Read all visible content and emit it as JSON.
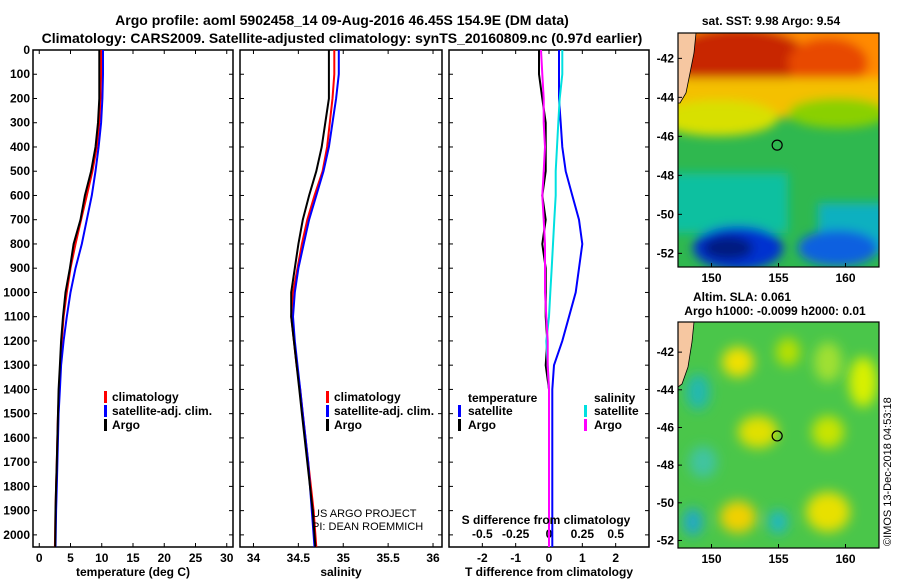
{
  "header": {
    "title_line1": "Argo profile: aoml 5902458_14 09-Aug-2016 46.45S 154.9E (DM data)",
    "title_line2": "Climatology: CARS2009. Satellite-adjusted climatology: synTS_20160809.nc (0.97d earlier)"
  },
  "map_sst": {
    "title": "sat. SST: 9.98 Argo: 9.54"
  },
  "map_sla": {
    "title_line1": "Altim. SLA: 0.061",
    "title_line2": "Argo h1000: -0.0099 h2000: 0.01"
  },
  "map_axes": {
    "lat_ticks": [
      "-42",
      "-44",
      "-46",
      "-48",
      "-50",
      "-52"
    ],
    "lon_ticks": [
      "150",
      "155",
      "160"
    ],
    "lat_values": [
      -42,
      -44,
      -46,
      -48,
      -50,
      -52
    ],
    "lon_values": [
      150,
      155,
      160
    ],
    "lon_range": [
      147.5,
      162.5
    ],
    "lat_range": [
      -40.7,
      -52.7
    ],
    "float_position": {
      "lon": 154.9,
      "lat": -46.45
    }
  },
  "colors": {
    "climatology": "#ff0000",
    "satellite": "#0000ff",
    "argo": "#000000",
    "sat_salinity": "#00e0e0",
    "argo_salinity": "#ff00ff"
  },
  "credits": {
    "line1": "US ARGO PROJECT",
    "line2": "PI: DEAN ROEMMICH"
  },
  "timestamp": "©IMOS 13-Dec-2018 04:53:18",
  "chart_data": [
    {
      "type": "line",
      "xlabel": "temperature (deg C)",
      "ylabel": "",
      "xlim": [
        -1,
        31
      ],
      "ylim": [
        2050,
        0
      ],
      "xticks": [
        "0",
        "5",
        "10",
        "15",
        "20",
        "25",
        "30"
      ],
      "xtick_values": [
        0,
        5,
        10,
        15,
        20,
        25,
        30
      ],
      "yticks": [
        "0",
        "100",
        "200",
        "300",
        "400",
        "500",
        "600",
        "700",
        "800",
        "900",
        "1000",
        "1100",
        "1200",
        "1300",
        "1400",
        "1500",
        "1600",
        "1700",
        "1800",
        "1900",
        "2000"
      ],
      "legend": [
        "climatology",
        "satellite-adj. clim.",
        "Argo"
      ],
      "series": [
        {
          "name": "climatology",
          "color": "#ff0000",
          "x": [
            9.9,
            9.9,
            9.8,
            9.6,
            9.2,
            8.5,
            7.6,
            6.7,
            5.8,
            5.0,
            4.4,
            3.9,
            3.6,
            3.4,
            3.2,
            3.0,
            2.9,
            2.8,
            2.7,
            2.6,
            2.5
          ],
          "y": [
            0,
            100,
            200,
            300,
            400,
            500,
            600,
            700,
            800,
            900,
            1000,
            1100,
            1200,
            1300,
            1400,
            1500,
            1600,
            1700,
            1800,
            1900,
            2050
          ]
        },
        {
          "name": "satellite-adj. clim.",
          "color": "#0000ff",
          "x": [
            10.2,
            10.2,
            10.1,
            9.9,
            9.5,
            9.0,
            8.4,
            7.6,
            6.8,
            5.8,
            5.0,
            4.4,
            3.9,
            3.5,
            3.3,
            3.1,
            3.0,
            2.9,
            2.8,
            2.7,
            2.6
          ],
          "y": [
            0,
            100,
            200,
            300,
            400,
            500,
            600,
            700,
            800,
            900,
            1000,
            1100,
            1200,
            1300,
            1400,
            1500,
            1600,
            1700,
            1800,
            1900,
            2050
          ]
        },
        {
          "name": "Argo",
          "color": "#000000",
          "x": [
            9.6,
            9.6,
            9.6,
            9.4,
            9.0,
            8.3,
            7.3,
            6.6,
            5.5,
            4.9,
            4.2,
            3.8,
            3.5,
            3.3,
            3.1,
            3.0,
            2.9,
            2.8,
            2.7,
            2.6,
            2.55
          ],
          "y": [
            0,
            100,
            200,
            300,
            400,
            500,
            600,
            700,
            800,
            900,
            1000,
            1100,
            1200,
            1300,
            1400,
            1500,
            1600,
            1700,
            1800,
            1900,
            2050
          ]
        }
      ]
    },
    {
      "type": "line",
      "xlabel": "salinity",
      "xlim": [
        33.85,
        36.1
      ],
      "ylim": [
        2050,
        0
      ],
      "xticks": [
        "34",
        "34.5",
        "35",
        "35.5",
        "36"
      ],
      "xtick_values": [
        34,
        34.5,
        35,
        35.5,
        36
      ],
      "legend": [
        "climatology",
        "satellite-adj. clim.",
        "Argo"
      ],
      "series": [
        {
          "name": "climatology",
          "color": "#ff0000",
          "x": [
            34.9,
            34.9,
            34.88,
            34.85,
            34.82,
            34.77,
            34.68,
            34.6,
            34.54,
            34.49,
            34.44,
            34.42,
            34.45,
            34.48,
            34.52,
            34.55,
            34.58,
            34.61,
            34.64,
            34.67,
            34.7
          ],
          "y": [
            0,
            100,
            200,
            300,
            400,
            500,
            600,
            700,
            800,
            900,
            1000,
            1100,
            1200,
            1300,
            1400,
            1500,
            1600,
            1700,
            1800,
            1900,
            2050
          ]
        },
        {
          "name": "satellite-adj. clim.",
          "color": "#0000ff",
          "x": [
            34.95,
            34.95,
            34.92,
            34.88,
            34.84,
            34.78,
            34.7,
            34.62,
            34.56,
            34.5,
            34.46,
            34.44,
            34.46,
            34.49,
            34.52,
            34.55,
            34.58,
            34.61,
            34.63,
            34.65,
            34.68
          ],
          "y": [
            0,
            100,
            200,
            300,
            400,
            500,
            600,
            700,
            800,
            900,
            1000,
            1100,
            1200,
            1300,
            1400,
            1500,
            1600,
            1700,
            1800,
            1900,
            2050
          ]
        },
        {
          "name": "Argo",
          "color": "#000000",
          "x": [
            34.84,
            34.84,
            34.84,
            34.8,
            34.76,
            34.7,
            34.62,
            34.55,
            34.5,
            34.46,
            34.42,
            34.42,
            34.45,
            34.48,
            34.51,
            34.54,
            34.57,
            34.6,
            34.63,
            34.66,
            34.69
          ],
          "y": [
            0,
            100,
            200,
            300,
            400,
            500,
            600,
            700,
            800,
            900,
            1000,
            1100,
            1200,
            1300,
            1400,
            1500,
            1600,
            1700,
            1800,
            1900,
            2050
          ]
        }
      ]
    },
    {
      "type": "line",
      "xlabel": "T difference from climatology",
      "xlabel_top": "S difference from climatology",
      "xlim": [
        -3,
        3
      ],
      "ylim": [
        2050,
        0
      ],
      "xticks": [
        "-2",
        "-1",
        "0",
        "1",
        "2"
      ],
      "xtick_values": [
        -2,
        -1,
        0,
        1,
        2
      ],
      "xticks_top": [
        "-0.5",
        "-0.25",
        "0",
        "0.25",
        "0.5"
      ],
      "xticks_top_values": [
        -0.5,
        -0.25,
        0,
        0.25,
        0.5
      ],
      "legend_temperature": {
        "heading": "temperature",
        "items": [
          "satellite",
          "Argo"
        ]
      },
      "legend_salinity": {
        "heading": "salinity",
        "items": [
          "satellite",
          "Argo"
        ]
      },
      "series": [
        {
          "name": "T satellite",
          "color": "#0000ff",
          "x": [
            0.3,
            0.3,
            0.3,
            0.35,
            0.4,
            0.5,
            0.7,
            0.9,
            1.0,
            0.9,
            0.8,
            0.6,
            0.4,
            0.15,
            0.1,
            0.1,
            0.1,
            0.1,
            0.1,
            0.1,
            0.1
          ],
          "y": [
            0,
            100,
            200,
            300,
            400,
            500,
            600,
            700,
            800,
            900,
            1000,
            1100,
            1200,
            1300,
            1400,
            1500,
            1600,
            1700,
            1800,
            1900,
            2050
          ]
        },
        {
          "name": "T Argo",
          "color": "#000000",
          "x": [
            -0.3,
            -0.3,
            -0.2,
            -0.1,
            -0.1,
            -0.1,
            -0.2,
            -0.1,
            -0.2,
            -0.1,
            -0.1,
            -0.1,
            -0.05,
            -0.1,
            0.0,
            0.0,
            0.0,
            0.0,
            0.0,
            0.0,
            0.0
          ],
          "y": [
            0,
            100,
            200,
            300,
            400,
            500,
            600,
            700,
            800,
            900,
            1000,
            1100,
            1200,
            1300,
            1400,
            1500,
            1600,
            1700,
            1800,
            1900,
            2050
          ]
        },
        {
          "name": "S satellite",
          "color": "#00e0e0",
          "x": [
            0.1,
            0.1,
            0.08,
            0.07,
            0.06,
            0.05,
            0.05,
            0.04,
            0.03,
            0.02,
            0.01,
            0.0,
            -0.02,
            -0.01,
            0.0,
            0.0,
            0.0,
            0.0,
            0.0,
            0.0,
            0.0
          ],
          "y": [
            0,
            100,
            200,
            300,
            400,
            500,
            600,
            700,
            800,
            900,
            1000,
            1100,
            1200,
            1300,
            1400,
            1500,
            1600,
            1700,
            1800,
            1900,
            2050
          ]
        },
        {
          "name": "S Argo",
          "color": "#ff00ff",
          "x": [
            -0.06,
            -0.05,
            -0.04,
            -0.04,
            -0.03,
            -0.04,
            -0.05,
            -0.04,
            -0.03,
            -0.03,
            -0.03,
            -0.02,
            -0.01,
            -0.01,
            0.0,
            0.0,
            0.0,
            0.0,
            0.0,
            0.0,
            0.0
          ],
          "y": [
            0,
            100,
            200,
            300,
            400,
            500,
            600,
            700,
            800,
            900,
            1000,
            1100,
            1200,
            1300,
            1400,
            1500,
            1600,
            1700,
            1800,
            1900,
            2050
          ]
        }
      ]
    }
  ]
}
